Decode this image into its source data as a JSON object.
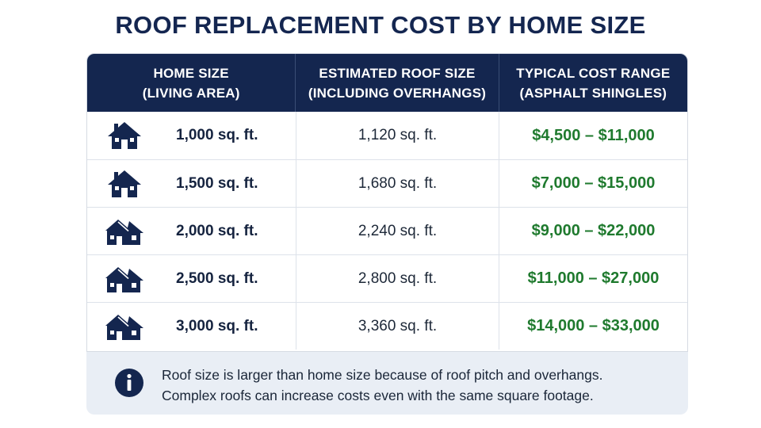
{
  "title": "ROOF REPLACEMENT COST BY HOME SIZE",
  "columns": [
    {
      "line1": "HOME SIZE",
      "line2": "(LIVING AREA)"
    },
    {
      "line1": "ESTIMATED ROOF SIZE",
      "line2": "(INCLUDING OVERHANGS)"
    },
    {
      "line1": "TYPICAL COST RANGE",
      "line2": "(ASPHALT SHINGLES)"
    }
  ],
  "rows": [
    {
      "icon": "house-small-icon",
      "home_size": "1,000 sq. ft.",
      "roof_size": "1,120 sq. ft.",
      "cost": "$4,500 – $11,000"
    },
    {
      "icon": "house-small-icon",
      "home_size": "1,500 sq. ft.",
      "roof_size": "1,680 sq. ft.",
      "cost": "$7,000 – $15,000"
    },
    {
      "icon": "house-large-icon",
      "home_size": "2,000 sq. ft.",
      "roof_size": "2,240 sq. ft.",
      "cost": "$9,000 – $22,000"
    },
    {
      "icon": "house-large-icon",
      "home_size": "2,500 sq. ft.",
      "roof_size": "2,800 sq. ft.",
      "cost": "$11,000 – $27,000"
    },
    {
      "icon": "house-large-icon",
      "home_size": "3,000 sq. ft.",
      "roof_size": "3,360 sq. ft.",
      "cost": "$14,000 – $33,000"
    }
  ],
  "note": {
    "icon": "info-icon",
    "line1": "Roof size is larger than home size because of roof pitch and overhangs.",
    "line2": "Complex roofs can increase costs even with the same square footage."
  },
  "colors": {
    "header_bg": "#14264f",
    "title": "#142650",
    "cost_text": "#1f7a2e",
    "note_bg": "#e9eef5",
    "icon": "#14264f"
  }
}
